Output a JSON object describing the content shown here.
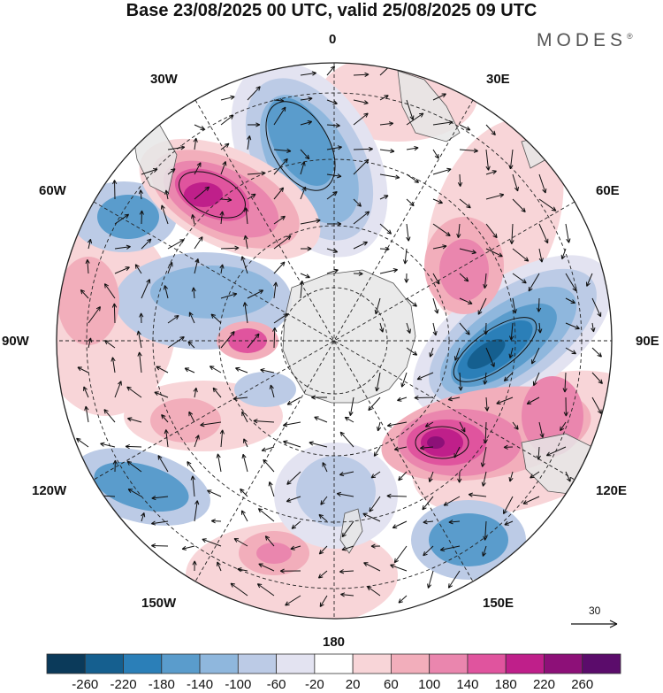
{
  "title": "Base 23/08/2025 00 UTC, valid 25/08/2025 09 UTC",
  "brand": "MODES",
  "brand_mark": "®",
  "longitude_labels": {
    "north": "0",
    "ne": "30E",
    "nw": "30W",
    "e60": "60E",
    "w60": "60W",
    "e90": "90E",
    "w90": "90W",
    "e120": "120E",
    "w120": "120W",
    "e150": "150E",
    "w150": "150W",
    "south": "180"
  },
  "reference_vector": {
    "label": "30",
    "icon": "arrow-right-icon"
  },
  "colorbar": {
    "ticks": [
      "-260",
      "-220",
      "-180",
      "-140",
      "-100",
      "-60",
      "-20",
      "20",
      "60",
      "100",
      "140",
      "180",
      "220",
      "260"
    ],
    "colors": [
      "#0b3a5a",
      "#155f8f",
      "#2b7fb8",
      "#5a9ccc",
      "#8fb7dd",
      "#bccbe6",
      "#e3e3f1",
      "#ffffff",
      "#f8d5d8",
      "#f2aebb",
      "#ea86ae",
      "#e0549e",
      "#bf1f8a",
      "#8d1078",
      "#5b0c6b"
    ]
  },
  "colors": {
    "land": "#e6e6e6",
    "coast": "#555555",
    "grid": "#222222"
  }
}
